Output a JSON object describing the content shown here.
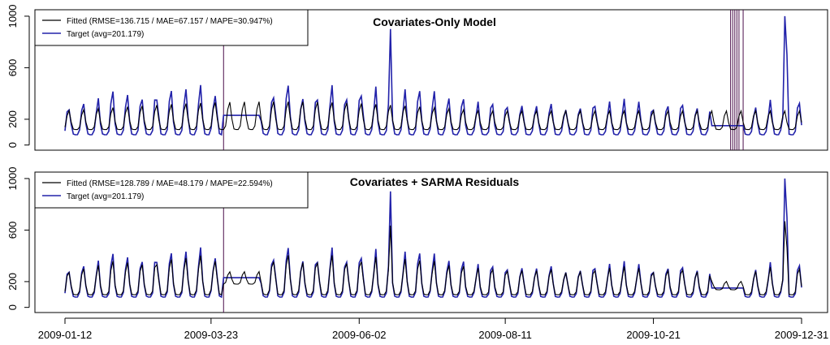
{
  "chart_data": [
    {
      "type": "line",
      "title": "Covariates-Only Model",
      "ylim": [
        -40,
        1050
      ],
      "y_ticks": [
        "0",
        "200",
        "600",
        "1000"
      ],
      "y_tick_values": [
        0,
        200,
        600,
        1000
      ],
      "legend_position": "top-left",
      "series": [
        {
          "name": "Fitted (RMSE=136.715 / MAE=67.157 / MAPE=30.947%)",
          "color": "#000000"
        },
        {
          "name": "Target (avg=201.179)",
          "color": "#2222aa"
        }
      ],
      "vertical_line_color": "#4b0f4b",
      "vertical_lines": [
        "2009-03-29",
        "2009-11-27",
        "2009-11-28",
        "2009-11-29",
        "2009-11-30",
        "2009-12-01",
        "2009-12-03"
      ]
    },
    {
      "type": "line",
      "title": "Covariates + SARMA Residuals",
      "ylim": [
        -40,
        1050
      ],
      "y_ticks": [
        "0",
        "200",
        "600",
        "1000"
      ],
      "y_tick_values": [
        0,
        200,
        600,
        1000
      ],
      "legend_position": "top-left",
      "series": [
        {
          "name": "Fitted (RMSE=128.789 / MAE=48.179 / MAPE=22.594%)",
          "color": "#000000"
        },
        {
          "name": "Target (avg=201.179)",
          "color": "#2222aa"
        }
      ],
      "vertical_line_color": "#4b0f4b",
      "vertical_lines": [
        "2009-03-29"
      ]
    }
  ],
  "x_axis": {
    "start": "2009-01-12",
    "end": "2009-12-31",
    "ticks": [
      "2009-01-12",
      "2009-03-23",
      "2009-06-02",
      "2009-08-11",
      "2009-10-21",
      "2009-12-31"
    ]
  }
}
